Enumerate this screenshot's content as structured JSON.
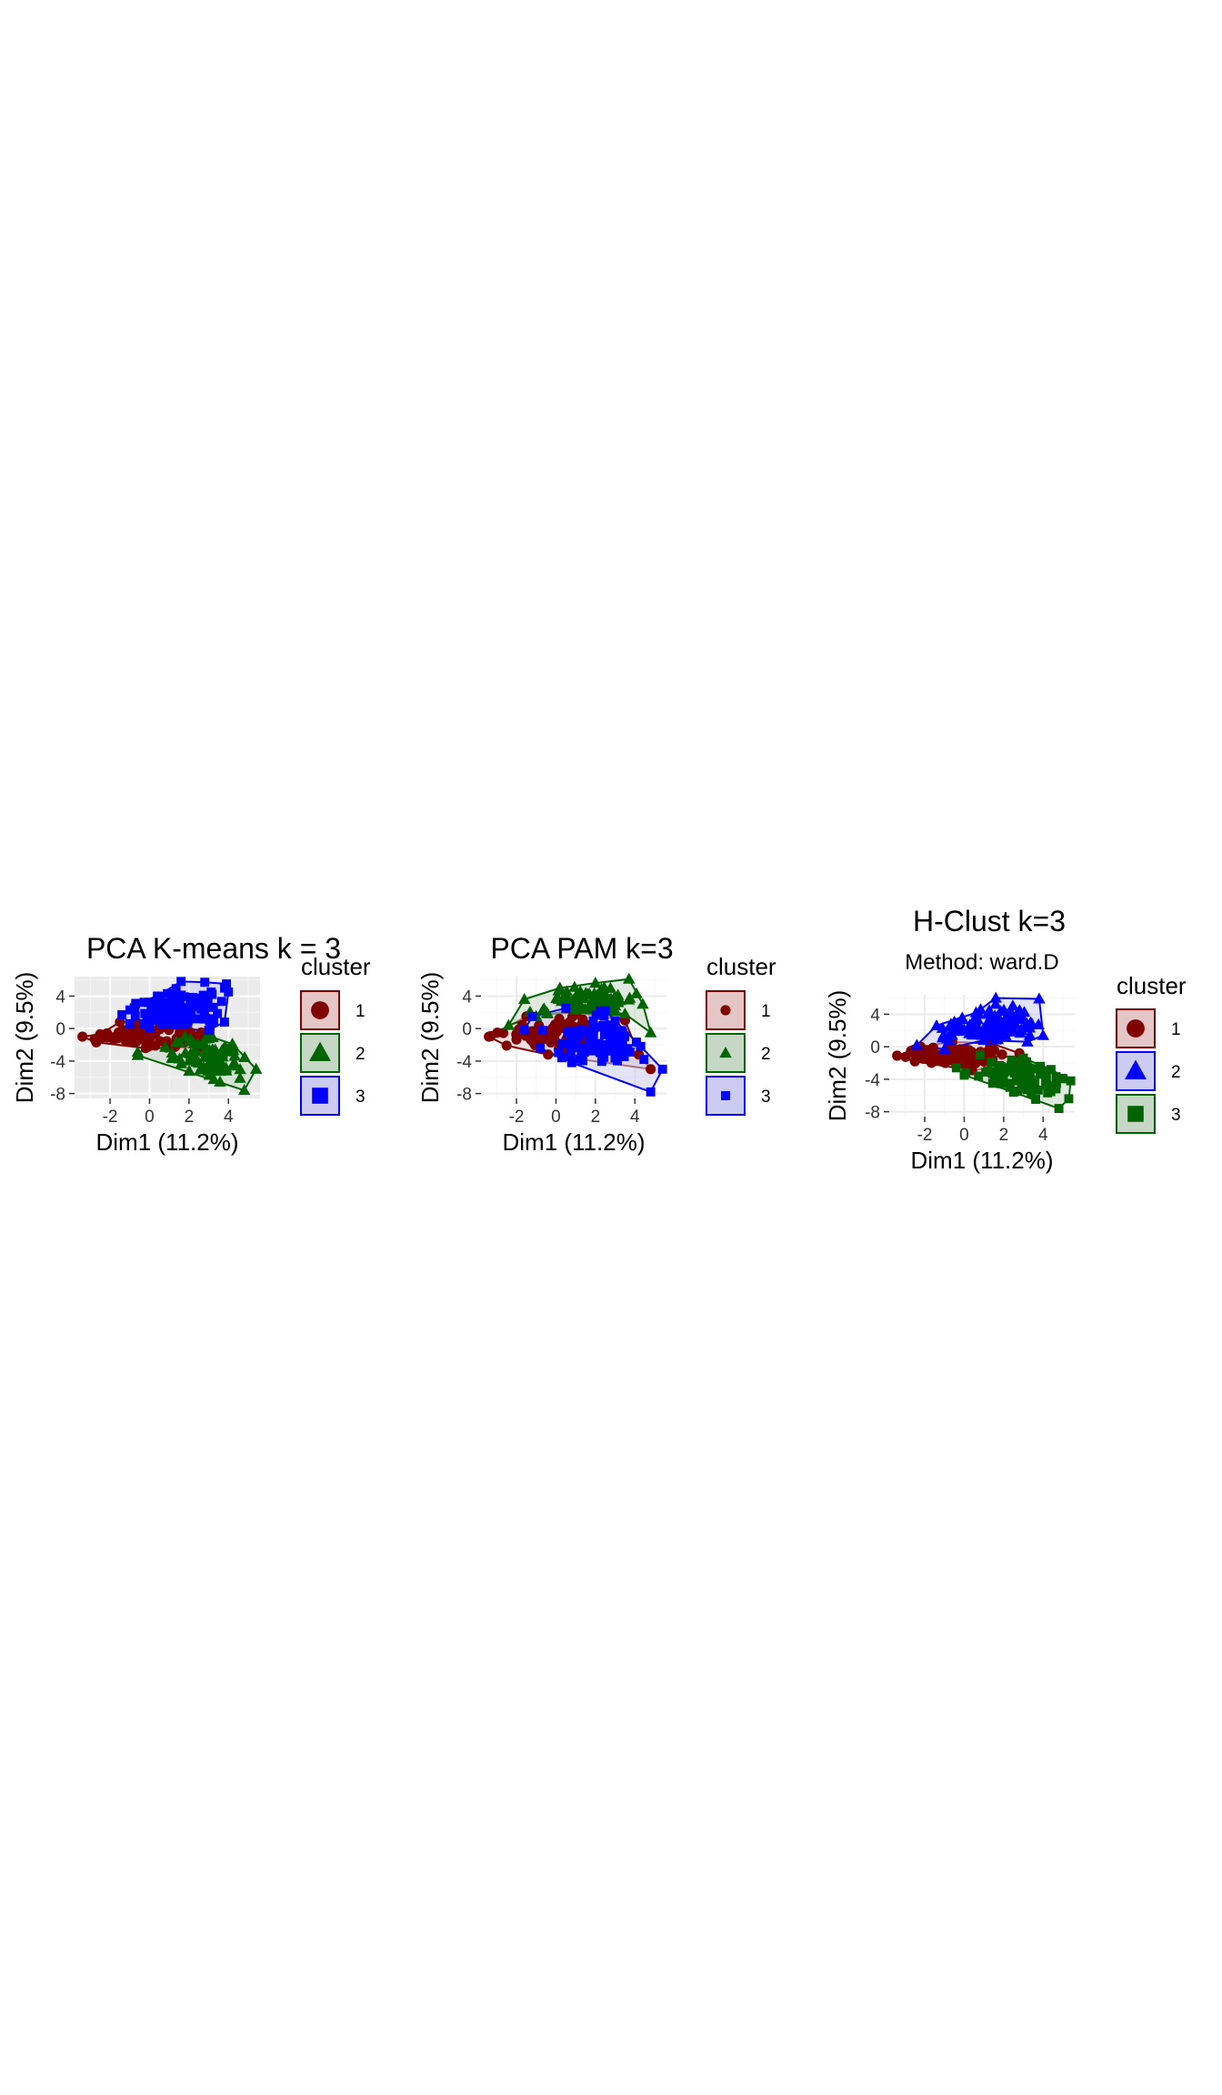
{
  "chart_data": [
    {
      "type": "scatter",
      "title": "PCA K-means k = 3",
      "subtitle": "",
      "xlabel": "Dim1 (11.2%)",
      "ylabel": "Dim2 (9.5%)",
      "xlim": [
        -3.8,
        5.6
      ],
      "ylim": [
        -8.6,
        6.4
      ],
      "xticks": [
        -2,
        0,
        2,
        4
      ],
      "xtick_labels": [
        "-2",
        "0",
        "2",
        "4"
      ],
      "yticks": [
        4,
        0,
        -4,
        -8
      ],
      "ytick_labels": [
        "4",
        "0",
        "-4",
        "-8"
      ],
      "theme": "grey",
      "grid": true,
      "legend": {
        "title": "cluster",
        "position": "right"
      },
      "series": [
        {
          "name": "1",
          "shape": "circle",
          "color": "#800000",
          "fill": "#e4c6c6",
          "hull": [
            [
              -3.4,
              -1.0
            ],
            [
              -2.5,
              -0.7
            ],
            [
              -1.5,
              0.8
            ],
            [
              0.4,
              1.0
            ],
            [
              1.0,
              0.6
            ],
            [
              3.0,
              -0.5
            ],
            [
              2.6,
              -2.3
            ],
            [
              -0.2,
              -2.4
            ],
            [
              -2.7,
              -1.7
            ]
          ],
          "center": [
            -0.4,
            -0.6
          ],
          "spread": [
            1.8,
            0.8
          ],
          "count": 90
        },
        {
          "name": "2",
          "shape": "triangle",
          "color": "#006400",
          "fill": "#c6d7c6",
          "hull": [
            [
              1.8,
              -1.0
            ],
            [
              3.2,
              -1.1
            ],
            [
              4.2,
              -1.9
            ],
            [
              5.4,
              -5.0
            ],
            [
              4.8,
              -7.6
            ],
            [
              -0.6,
              -3.3
            ],
            [
              -0.6,
              -2.9
            ],
            [
              0.8,
              -2.3
            ]
          ],
          "center": [
            3.2,
            -3.6
          ],
          "spread": [
            1.0,
            1.3
          ],
          "count": 75
        },
        {
          "name": "3",
          "shape": "square",
          "color": "#0000ff",
          "fill": "#ccccf3",
          "hull": [
            [
              -1.4,
              1.7
            ],
            [
              -0.7,
              3.1
            ],
            [
              0.4,
              4.0
            ],
            [
              1.6,
              5.8
            ],
            [
              2.8,
              5.7
            ],
            [
              3.9,
              5.5
            ],
            [
              4.0,
              4.5
            ],
            [
              3.8,
              0.8
            ],
            [
              3.0,
              -0.2
            ],
            [
              0.0,
              0.1
            ],
            [
              -1.0,
              0.6
            ]
          ],
          "center": [
            1.4,
            2.4
          ],
          "spread": [
            1.4,
            1.2
          ],
          "count": 110
        }
      ]
    },
    {
      "type": "scatter",
      "title": "PCA PAM k=3",
      "subtitle": "",
      "xlabel": "Dim1 (11.2%)",
      "ylabel": "Dim2 (9.5%)",
      "xlim": [
        -3.8,
        5.6
      ],
      "ylim": [
        -8.6,
        6.4
      ],
      "xticks": [
        -2,
        0,
        2,
        4
      ],
      "xtick_labels": [
        "-2",
        "0",
        "2",
        "4"
      ],
      "yticks": [
        4,
        0,
        -4,
        -8
      ],
      "ytick_labels": [
        "4",
        "0",
        "-4",
        "-8"
      ],
      "theme": "minimal",
      "grid": true,
      "legend": {
        "title": "cluster",
        "position": "right"
      },
      "series": [
        {
          "name": "1",
          "shape": "circle",
          "color": "#800000",
          "fill": "#e4c6c6",
          "hull": [
            [
              -3.4,
              -1.0
            ],
            [
              -1.5,
              1.5
            ],
            [
              1.0,
              2.0
            ],
            [
              3.5,
              1.0
            ],
            [
              4.2,
              -3.2
            ],
            [
              4.8,
              -5.0
            ],
            [
              -0.4,
              -3.2
            ],
            [
              -2.5,
              -2.1
            ]
          ],
          "center": [
            0.0,
            -0.8
          ],
          "spread": [
            1.8,
            1.1
          ],
          "count": 70
        },
        {
          "name": "2",
          "shape": "triangle",
          "color": "#006400",
          "fill": "#c6d7c6",
          "hull": [
            [
              -2.4,
              0.4
            ],
            [
              -1.6,
              3.6
            ],
            [
              0.2,
              5.0
            ],
            [
              2.0,
              5.6
            ],
            [
              3.7,
              6.1
            ],
            [
              4.4,
              3.0
            ],
            [
              4.8,
              -0.5
            ],
            [
              3.5,
              1.8
            ],
            [
              1.0,
              2.3
            ],
            [
              -1.0,
              1.5
            ]
          ],
          "center": [
            1.6,
            3.4
          ],
          "spread": [
            1.3,
            1.0
          ],
          "count": 80
        },
        {
          "name": "3",
          "shape": "square",
          "color": "#0000ff",
          "fill": "#ccccf3",
          "hull": [
            [
              -1.6,
              -0.2
            ],
            [
              -1.2,
              1.5
            ],
            [
              0.5,
              2.5
            ],
            [
              2.5,
              2.2
            ],
            [
              4.3,
              -2.2
            ],
            [
              5.4,
              -5.0
            ],
            [
              4.8,
              -7.8
            ],
            [
              0.8,
              -4.2
            ],
            [
              -0.8,
              -2.4
            ]
          ],
          "center": [
            2.0,
            -1.6
          ],
          "spread": [
            1.4,
            1.6
          ],
          "count": 90
        }
      ]
    },
    {
      "type": "scatter",
      "title": "H-Clust k=3",
      "subtitle": "Method: ward.D",
      "xlabel": "Dim1 (11.2%)",
      "ylabel": "Dim2 (9.5%)",
      "xlim": [
        -3.8,
        5.6
      ],
      "ylim": [
        -8.6,
        6.4
      ],
      "xticks": [
        -2,
        0,
        2,
        4
      ],
      "xtick_labels": [
        "-2",
        "0",
        "2",
        "4"
      ],
      "yticks": [
        4,
        0,
        -4,
        -8
      ],
      "ytick_labels": [
        "4",
        "0",
        "-4",
        "-8"
      ],
      "theme": "minimal",
      "grid": true,
      "legend": {
        "title": "cluster",
        "position": "right"
      },
      "series": [
        {
          "name": "1",
          "shape": "circle",
          "color": "#800000",
          "fill": "#e4c6c6",
          "hull": [
            [
              -3.4,
              -1.1
            ],
            [
              -2.2,
              0.0
            ],
            [
              -0.6,
              0.6
            ],
            [
              1.4,
              0.4
            ],
            [
              2.8,
              -0.8
            ],
            [
              2.8,
              -2.2
            ],
            [
              0.4,
              -2.9
            ],
            [
              -2.5,
              -1.8
            ]
          ],
          "center": [
            -0.6,
            -1.0
          ],
          "spread": [
            1.6,
            0.8
          ],
          "count": 80
        },
        {
          "name": "2",
          "shape": "triangle",
          "color": "#0000ff",
          "fill": "#ccccf3",
          "hull": [
            [
              -2.4,
              0.2
            ],
            [
              -1.4,
              2.6
            ],
            [
              0.6,
              4.2
            ],
            [
              1.6,
              6.0
            ],
            [
              3.8,
              5.9
            ],
            [
              4.0,
              1.4
            ],
            [
              3.2,
              0.6
            ],
            [
              1.0,
              0.8
            ],
            [
              -1.0,
              -0.3
            ]
          ],
          "center": [
            1.2,
            2.8
          ],
          "spread": [
            1.5,
            1.2
          ],
          "count": 110
        },
        {
          "name": "3",
          "shape": "square",
          "color": "#006400",
          "fill": "#c6d7c6",
          "hull": [
            [
              -0.4,
              -2.6
            ],
            [
              0.8,
              -1.0
            ],
            [
              3.0,
              -1.4
            ],
            [
              4.4,
              -2.8
            ],
            [
              5.4,
              -4.2
            ],
            [
              5.3,
              -6.4
            ],
            [
              4.8,
              -7.6
            ],
            [
              2.5,
              -5.6
            ],
            [
              0.0,
              -3.5
            ]
          ],
          "center": [
            3.0,
            -3.8
          ],
          "spread": [
            1.2,
            1.2
          ],
          "count": 80
        }
      ]
    }
  ]
}
